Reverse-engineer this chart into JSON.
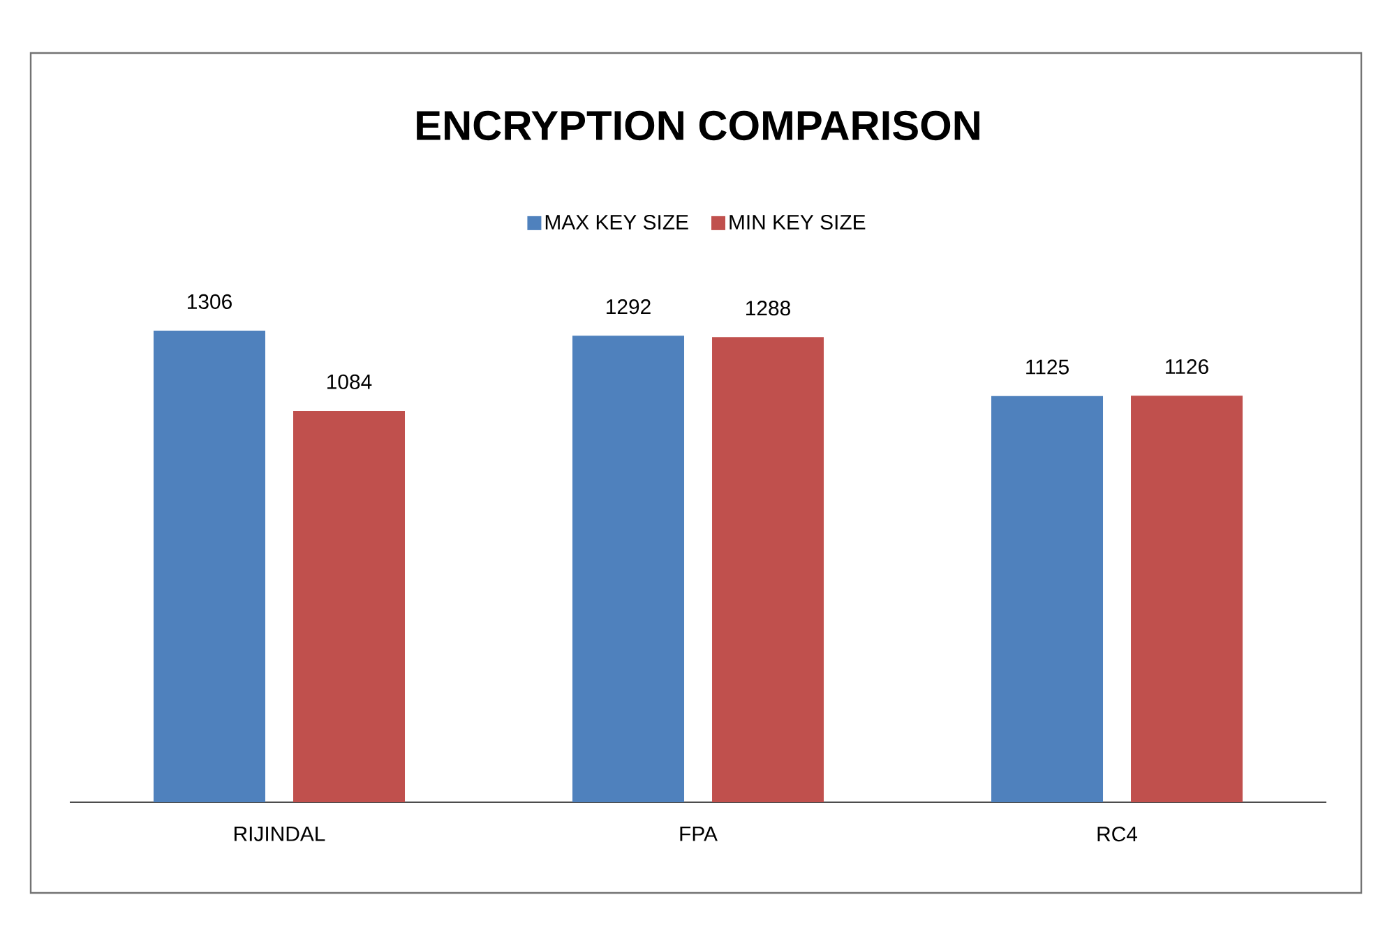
{
  "chart_data": {
    "type": "bar",
    "title": "ENCRYPTION COMPARISON",
    "categories": [
      "RIJINDAL",
      "FPA",
      "RC4"
    ],
    "series": [
      {
        "name": "MAX KEY SIZE",
        "color": "#4f81bd",
        "values": [
          1306,
          1292,
          1125
        ]
      },
      {
        "name": "MIN KEY SIZE",
        "color": "#c0504d",
        "values": [
          1084,
          1288,
          1126
        ]
      }
    ],
    "tick_labels": "x",
    "data_labels": true,
    "legend": "top"
  }
}
